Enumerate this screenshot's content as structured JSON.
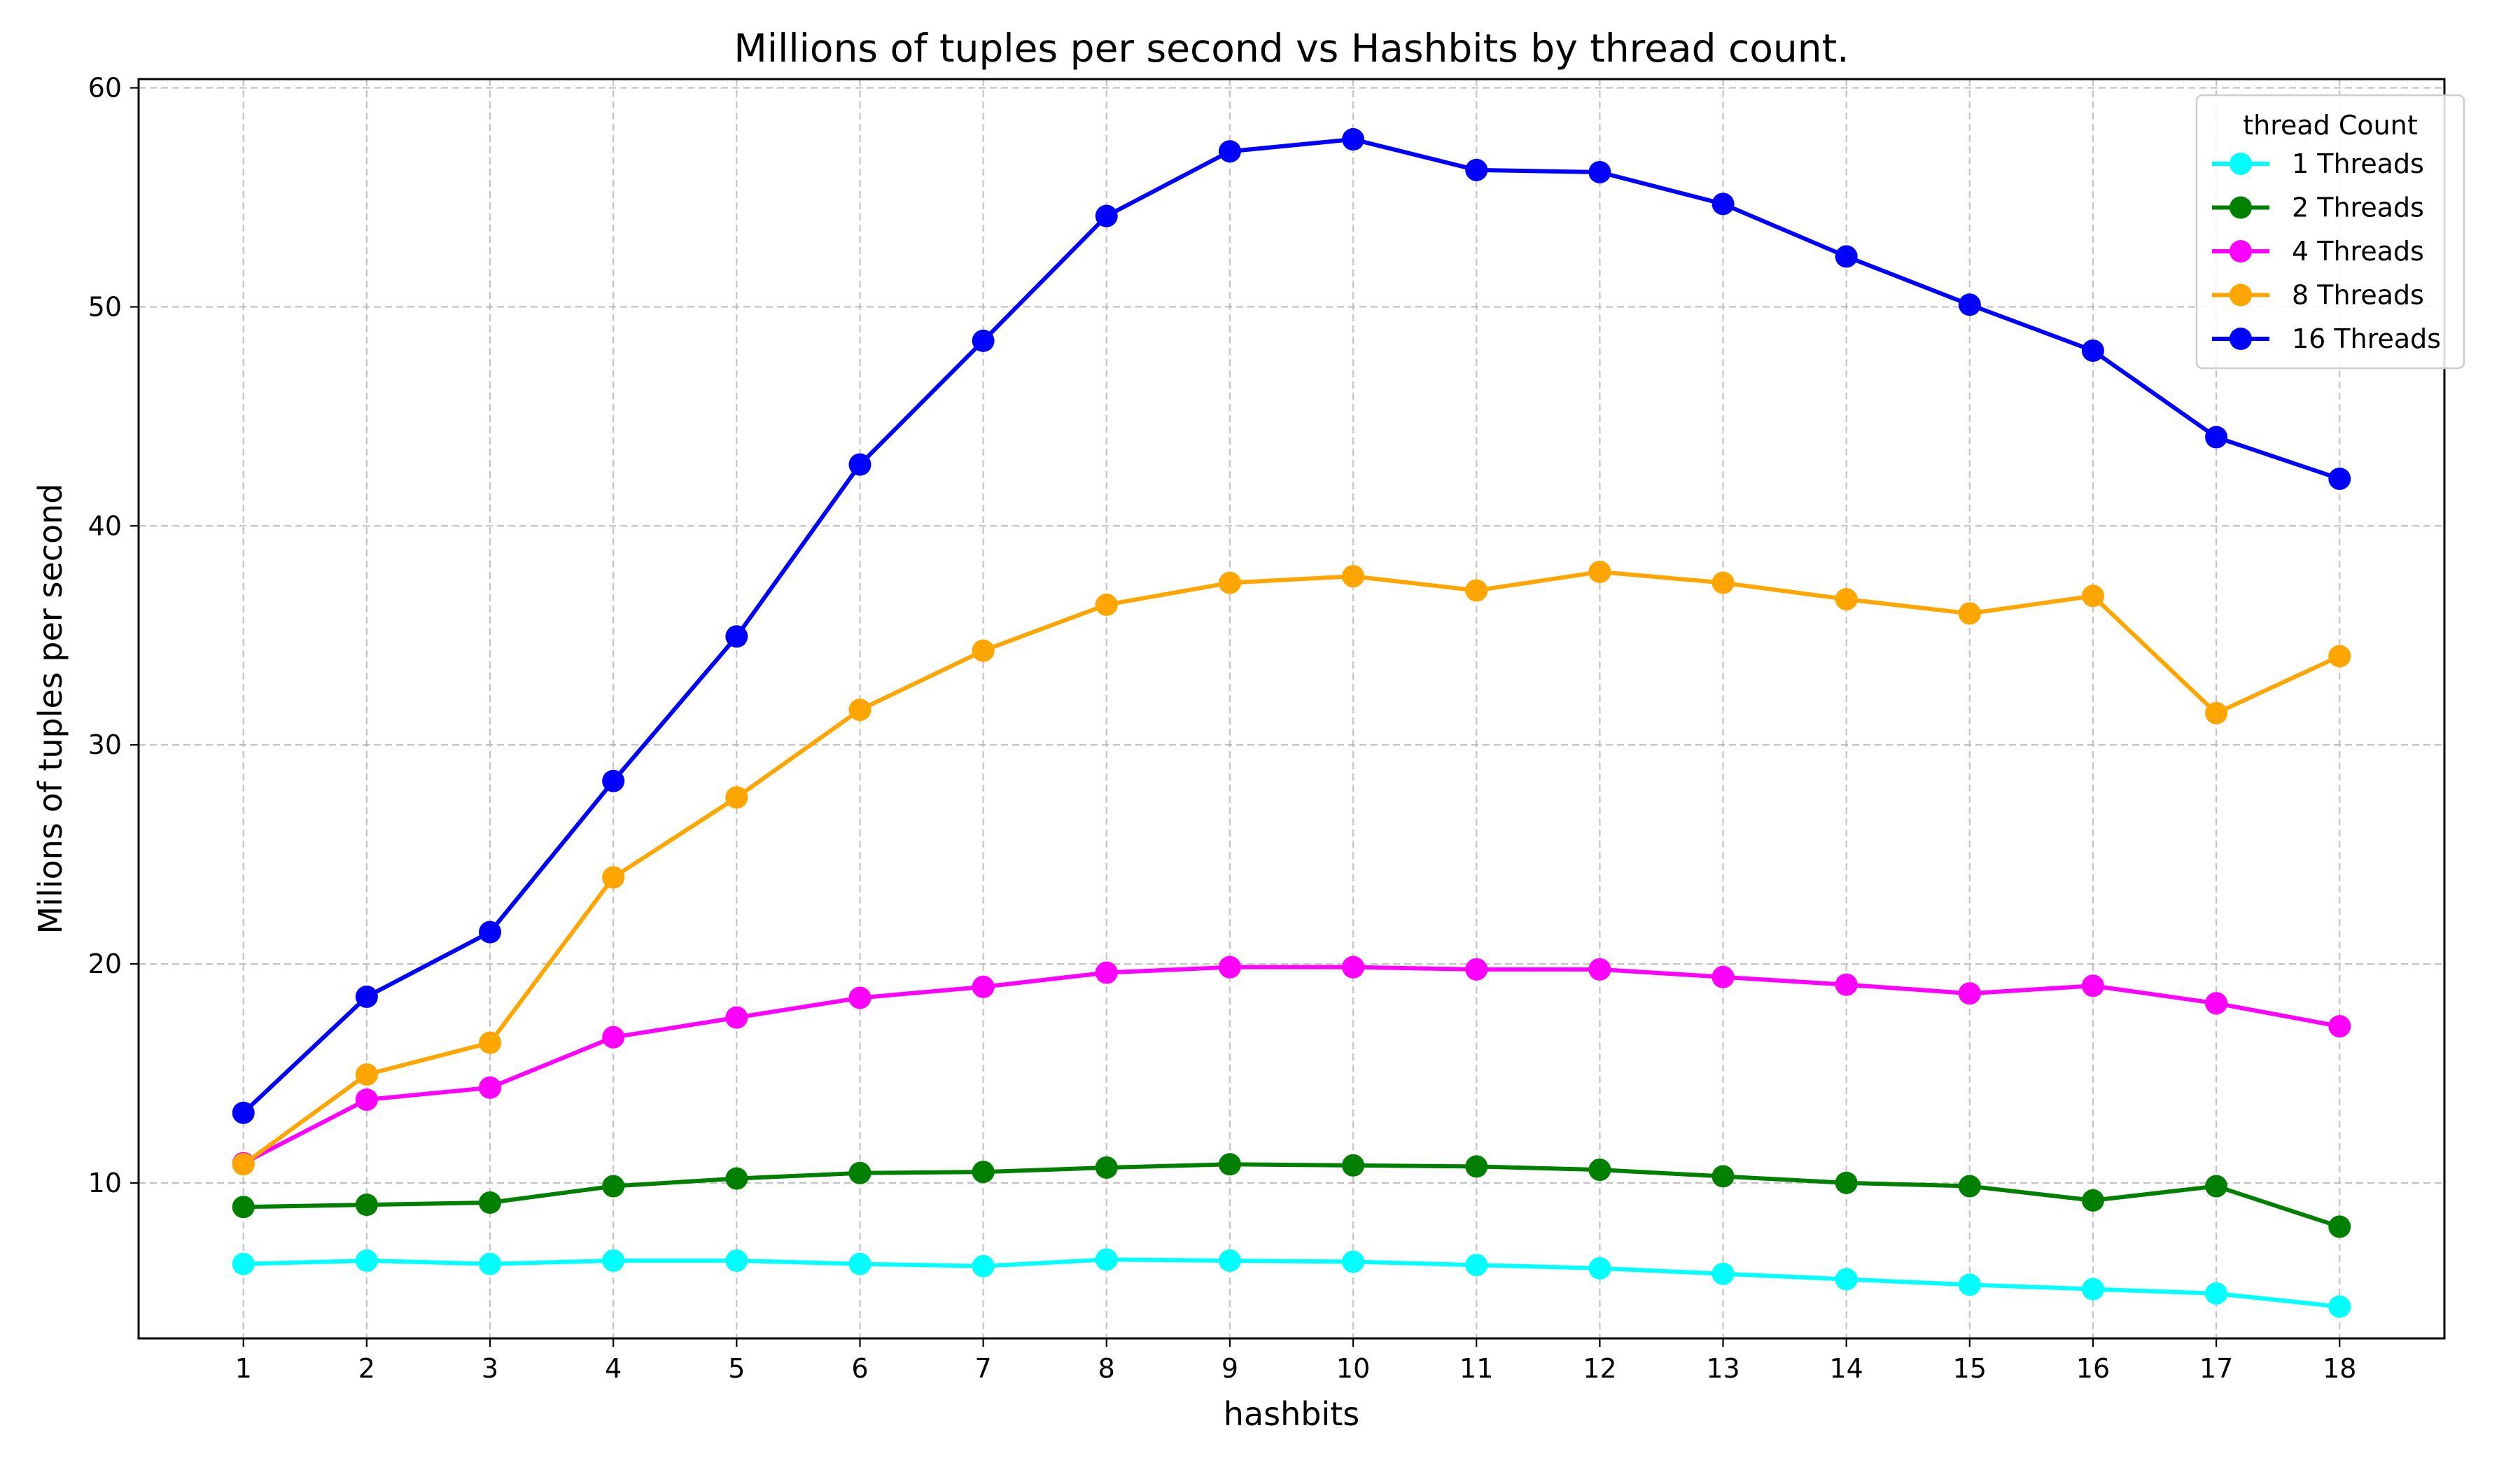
{
  "chart_data": {
    "type": "line",
    "title": "Millions of tuples per second vs Hashbits by thread count.",
    "xlabel": "hashbits",
    "ylabel": "Milions of tuples per second",
    "x": [
      1,
      2,
      3,
      4,
      5,
      6,
      7,
      8,
      9,
      10,
      11,
      12,
      13,
      14,
      15,
      16,
      17,
      18
    ],
    "xlim": [
      0.15,
      18.85
    ],
    "ylim": [
      2.9,
      60.4
    ],
    "yticks": [
      10,
      20,
      30,
      40,
      50,
      60
    ],
    "grid": true,
    "legend": {
      "title": "thread Count",
      "placement": "top-right"
    },
    "series": [
      {
        "name": "1 Threads",
        "color": "#00ffff",
        "values": [
          6.3,
          6.45,
          6.3,
          6.45,
          6.45,
          6.3,
          6.2,
          6.5,
          6.45,
          6.4,
          6.25,
          6.1,
          5.85,
          5.6,
          5.35,
          5.15,
          4.95,
          4.35
        ]
      },
      {
        "name": "2 Threads",
        "color": "#008000",
        "values": [
          8.9,
          9.0,
          9.1,
          9.85,
          10.2,
          10.45,
          10.5,
          10.7,
          10.85,
          10.8,
          10.75,
          10.6,
          10.3,
          10.0,
          9.85,
          9.2,
          9.85,
          8.0
        ]
      },
      {
        "name": "4 Threads",
        "color": "#ff00ff",
        "values": [
          10.9,
          13.8,
          14.35,
          16.65,
          17.55,
          18.45,
          18.95,
          19.6,
          19.85,
          19.85,
          19.75,
          19.75,
          19.4,
          19.05,
          18.65,
          19.0,
          18.2,
          17.15
        ]
      },
      {
        "name": "8 Threads",
        "color": "#ffa500",
        "values": [
          10.85,
          14.95,
          16.4,
          23.95,
          27.6,
          31.6,
          34.3,
          36.4,
          37.4,
          37.7,
          37.05,
          37.9,
          37.4,
          36.65,
          36.0,
          36.8,
          31.45,
          34.05
        ]
      },
      {
        "name": "16 Threads",
        "color": "#0000ff",
        "values": [
          13.2,
          18.5,
          21.45,
          28.35,
          34.95,
          42.8,
          48.45,
          54.15,
          57.1,
          57.65,
          56.25,
          56.15,
          54.7,
          52.3,
          50.1,
          48.0,
          44.05,
          42.15
        ]
      }
    ]
  }
}
